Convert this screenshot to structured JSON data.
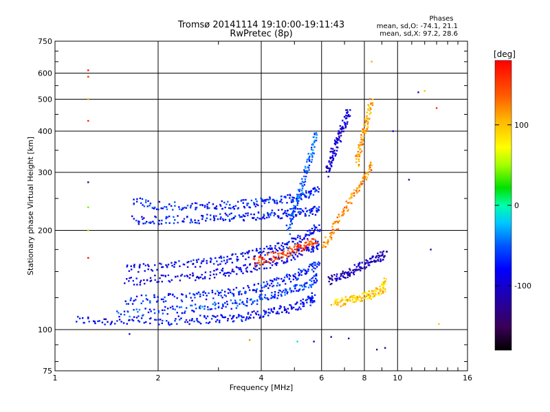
{
  "chart_data": {
    "type": "scatter",
    "title": "Tromsø 20141114 19:10:00-19:11:43",
    "subtitle": "RwPretec (8p)",
    "xlabel": "Frequency [MHz]",
    "ylabel": "Stationary phase Virtual Height [km]",
    "x_scale": "log",
    "y_scale": "log",
    "xlim": [
      1,
      16
    ],
    "ylim": [
      75,
      750
    ],
    "x_ticks": [
      1,
      2,
      4,
      6,
      8,
      10,
      16
    ],
    "x_tick_labels": [
      "1",
      "2",
      "4",
      "6",
      "8",
      "10",
      "16"
    ],
    "y_ticks": [
      75,
      100,
      200,
      300,
      400,
      500,
      600,
      750
    ],
    "y_tick_labels": [
      "75",
      "100",
      "200",
      "300",
      "400",
      "500",
      "600",
      "750"
    ],
    "grid": true,
    "phases_box": {
      "heading": "Phases",
      "line_o": "mean, sd,O: -74.1, 21.1",
      "line_x": "mean, sd,X:  97.2, 28.6"
    },
    "colorbar": {
      "label": "[deg]",
      "range": [
        -180,
        180
      ],
      "ticks": [
        100,
        0,
        -100
      ],
      "tick_labels": [
        "100",
        "0",
        "-100"
      ]
    },
    "traces": [
      {
        "f": [
          1.15,
          1.5,
          2.0,
          2.5,
          3.0,
          3.5,
          4.0,
          4.5,
          5.0,
          5.5,
          5.7
        ],
        "h": [
          107,
          106,
          106,
          107,
          108,
          109,
          112,
          114,
          117,
          122,
          126
        ],
        "phase": -80
      },
      {
        "f": [
          1.5,
          2.0,
          2.5,
          3.0,
          3.5,
          4.0,
          4.5,
          5.0,
          5.5,
          5.9
        ],
        "h": [
          112,
          114,
          116,
          118,
          120,
          124,
          128,
          132,
          138,
          145
        ],
        "phase": -60
      },
      {
        "f": [
          1.6,
          2.0,
          2.5,
          3.0,
          3.5,
          4.0,
          4.5,
          5.0,
          5.5,
          5.9
        ],
        "h": [
          123,
          124,
          126,
          128,
          131,
          135,
          140,
          145,
          152,
          160
        ],
        "phase": -70
      },
      {
        "f": [
          1.6,
          2.0,
          2.5,
          3.0,
          3.5,
          4.0,
          4.5,
          5.0,
          5.5,
          5.9
        ],
        "h": [
          140,
          142,
          145,
          148,
          152,
          156,
          162,
          168,
          175,
          182
        ],
        "phase": -90
      },
      {
        "f": [
          1.6,
          2.0,
          2.5,
          3.0,
          3.5,
          4.0,
          4.5,
          5.0,
          5.5,
          5.9
        ],
        "h": [
          152,
          155,
          158,
          162,
          166,
          172,
          178,
          185,
          195,
          205
        ],
        "phase": -80
      },
      {
        "f": [
          1.7,
          2.0,
          2.5,
          3.0,
          3.5,
          4.0,
          4.5,
          5.0,
          5.5,
          5.9
        ],
        "h": [
          215,
          214,
          216,
          218,
          220,
          222,
          224,
          226,
          228,
          230
        ],
        "phase": -75
      },
      {
        "f": [
          1.7,
          2.0,
          2.5,
          3.0,
          3.5,
          4.0,
          4.5,
          5.0,
          5.5,
          5.9
        ],
        "h": [
          245,
          238,
          236,
          238,
          240,
          244,
          248,
          252,
          258,
          265
        ],
        "phase": -70
      },
      {
        "f": [
          4.8,
          5.0,
          5.2,
          5.4,
          5.6,
          5.8
        ],
        "h": [
          200,
          230,
          260,
          300,
          340,
          400
        ],
        "phase": -50
      },
      {
        "f": [
          6.2,
          6.4,
          6.6,
          6.8,
          7.0,
          7.2
        ],
        "h": [
          300,
          330,
          360,
          390,
          420,
          460
        ],
        "phase": -100
      },
      {
        "f": [
          7.6,
          7.8,
          8.0,
          8.2,
          8.4
        ],
        "h": [
          320,
          360,
          400,
          440,
          500
        ],
        "phase": 110
      },
      {
        "f": [
          6.5,
          7.0,
          7.5,
          8.0,
          8.5,
          9.0,
          9.3
        ],
        "h": [
          120,
          122,
          124,
          126,
          128,
          132,
          140
        ],
        "phase": 95
      },
      {
        "f": [
          6.3,
          6.8,
          7.3,
          7.8,
          8.3,
          8.8,
          9.3
        ],
        "h": [
          140,
          145,
          150,
          155,
          160,
          165,
          170
        ],
        "phase": -110
      },
      {
        "f": [
          3.8,
          4.2,
          4.6,
          5.0,
          5.4,
          5.8
        ],
        "h": [
          160,
          165,
          170,
          175,
          180,
          185
        ],
        "phase": 150
      },
      {
        "f": [
          6.1,
          6.5,
          7.0,
          7.5,
          8.0,
          8.5
        ],
        "h": [
          180,
          200,
          230,
          260,
          290,
          320
        ],
        "phase": 120
      }
    ],
    "outliers": {
      "f": [
        1.25,
        1.25,
        1.25,
        1.25,
        1.25,
        1.25,
        1.25,
        1.25,
        1.65,
        3.7,
        5.1,
        5.7,
        6.4,
        7.2,
        8.7,
        9.2,
        9.7,
        10.8,
        11.5,
        13.0,
        13.2,
        12.5,
        8.4,
        12.0
      ],
      "h": [
        612,
        585,
        500,
        430,
        280,
        235,
        200,
        165,
        97,
        93,
        92,
        92,
        95,
        94,
        87,
        88,
        400,
        285,
        525,
        470,
        104,
        175,
        650,
        530
      ],
      "phase": [
        175,
        160,
        110,
        170,
        -130,
        40,
        50,
        175,
        -100,
        120,
        -10,
        -90,
        -120,
        -110,
        -130,
        -120,
        -80,
        -110,
        -120,
        160,
        100,
        -120,
        110,
        100
      ]
    }
  }
}
